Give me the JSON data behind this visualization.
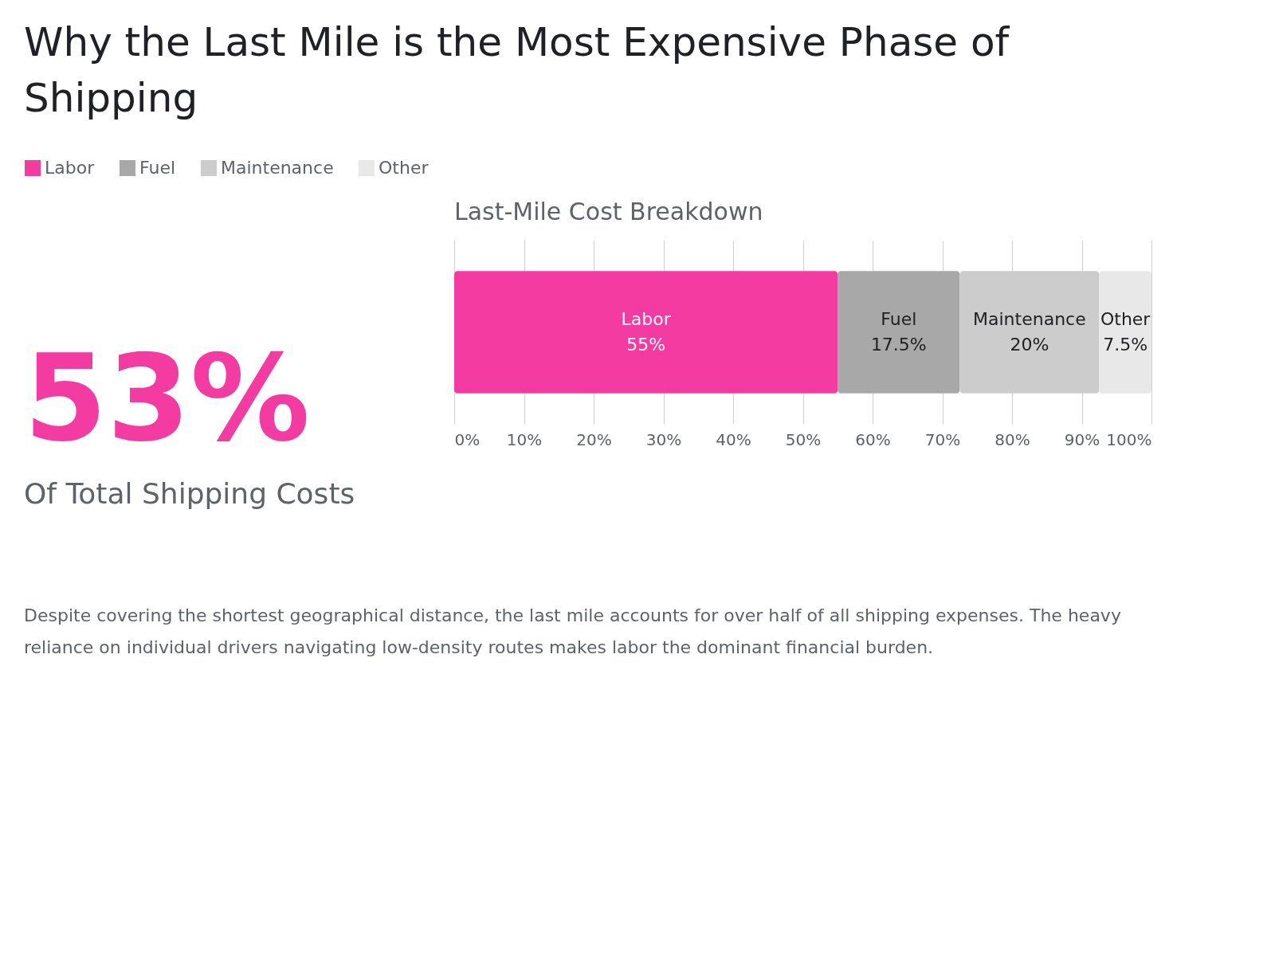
{
  "chart_data": [
    {
      "type": "other",
      "title": "Why the Last Mile is the Most Expensive Phase of Shipping",
      "annotations": [
        "53%",
        "Of Total Shipping Costs"
      ]
    },
    {
      "type": "bar",
      "orientation": "horizontal",
      "stacked": true,
      "title": "Last-Mile Cost Breakdown",
      "categories": [
        null
      ],
      "series": [
        {
          "name": "Labor",
          "color": "#f43ba1",
          "values": [
            55
          ],
          "value_labels": [
            "55%"
          ]
        },
        {
          "name": "Fuel",
          "color": "#a8a8a8",
          "values": [
            17.5
          ],
          "value_labels": [
            "17.5%"
          ]
        },
        {
          "name": "Maintenance",
          "color": "#cccccc",
          "values": [
            20
          ],
          "value_labels": [
            "20%"
          ]
        },
        {
          "name": "Other",
          "color": "#e8e8e8",
          "values": [
            7.5
          ],
          "value_labels": [
            "7.5%"
          ]
        }
      ],
      "xlim": [
        0,
        100
      ],
      "xticks": [
        {
          "value": 0,
          "label": "0%"
        },
        {
          "value": 10,
          "label": "10%"
        },
        {
          "value": 20,
          "label": "20%"
        },
        {
          "value": 30,
          "label": "30%"
        },
        {
          "value": 40,
          "label": "40%"
        },
        {
          "value": 50,
          "label": "50%"
        },
        {
          "value": 60,
          "label": "60%"
        },
        {
          "value": 70,
          "label": "70%"
        },
        {
          "value": 80,
          "label": "80%"
        },
        {
          "value": 90,
          "label": "90%"
        },
        {
          "value": 100,
          "label": "100%"
        }
      ],
      "grid": "x",
      "legend": "top left",
      "annotations": [
        "Despite covering the shortest geographical distance, the last mile accounts for over half of all shipping expenses. The heavy reliance on individual drivers navigating low-density routes makes labor the dominant financial burden."
      ]
    }
  ]
}
